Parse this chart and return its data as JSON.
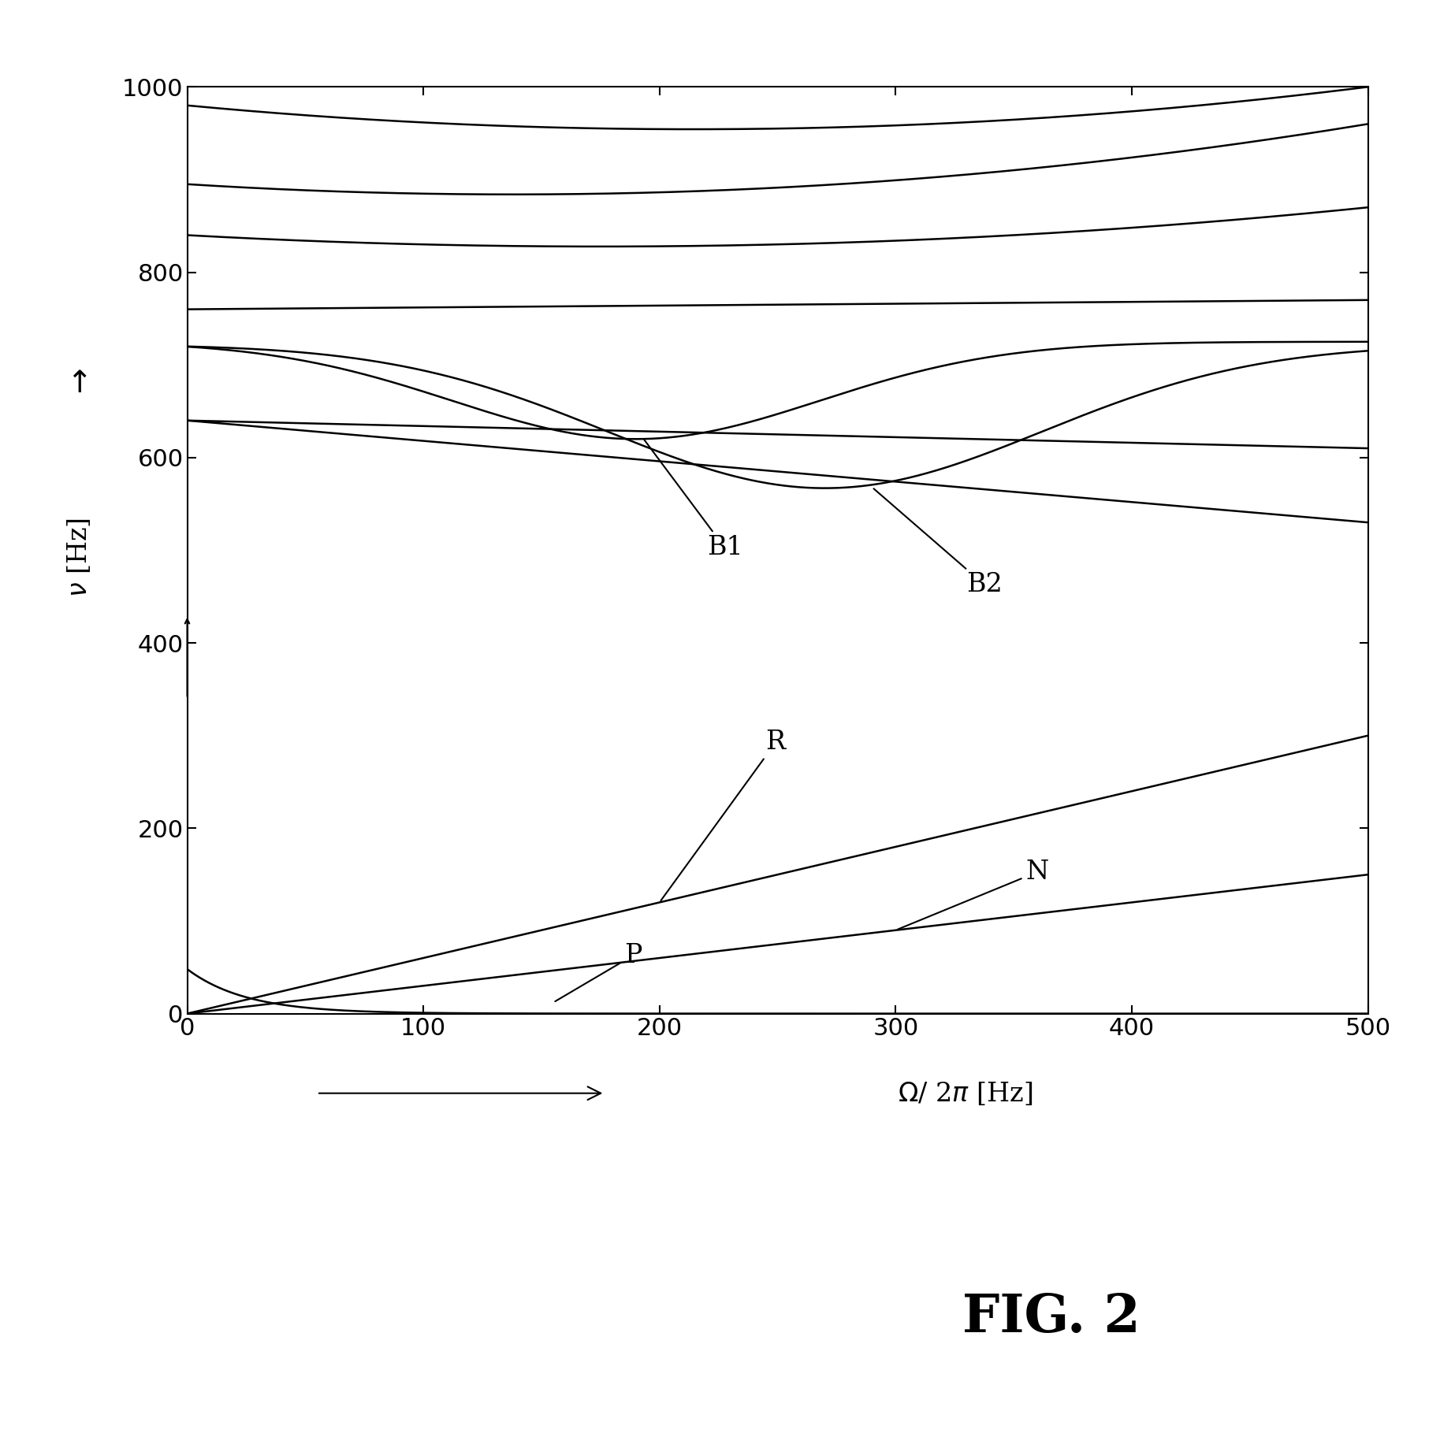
{
  "xlim": [
    0,
    500
  ],
  "ylim": [
    0,
    1000
  ],
  "xticks": [
    0,
    100,
    200,
    300,
    400,
    500
  ],
  "yticks": [
    0,
    200,
    400,
    600,
    800,
    1000
  ],
  "line_color": "#000000",
  "line_width": 1.8,
  "annotation_fontsize": 24,
  "axis_label_fontsize": 24,
  "tick_fontsize": 22,
  "caption_fontsize": 48
}
